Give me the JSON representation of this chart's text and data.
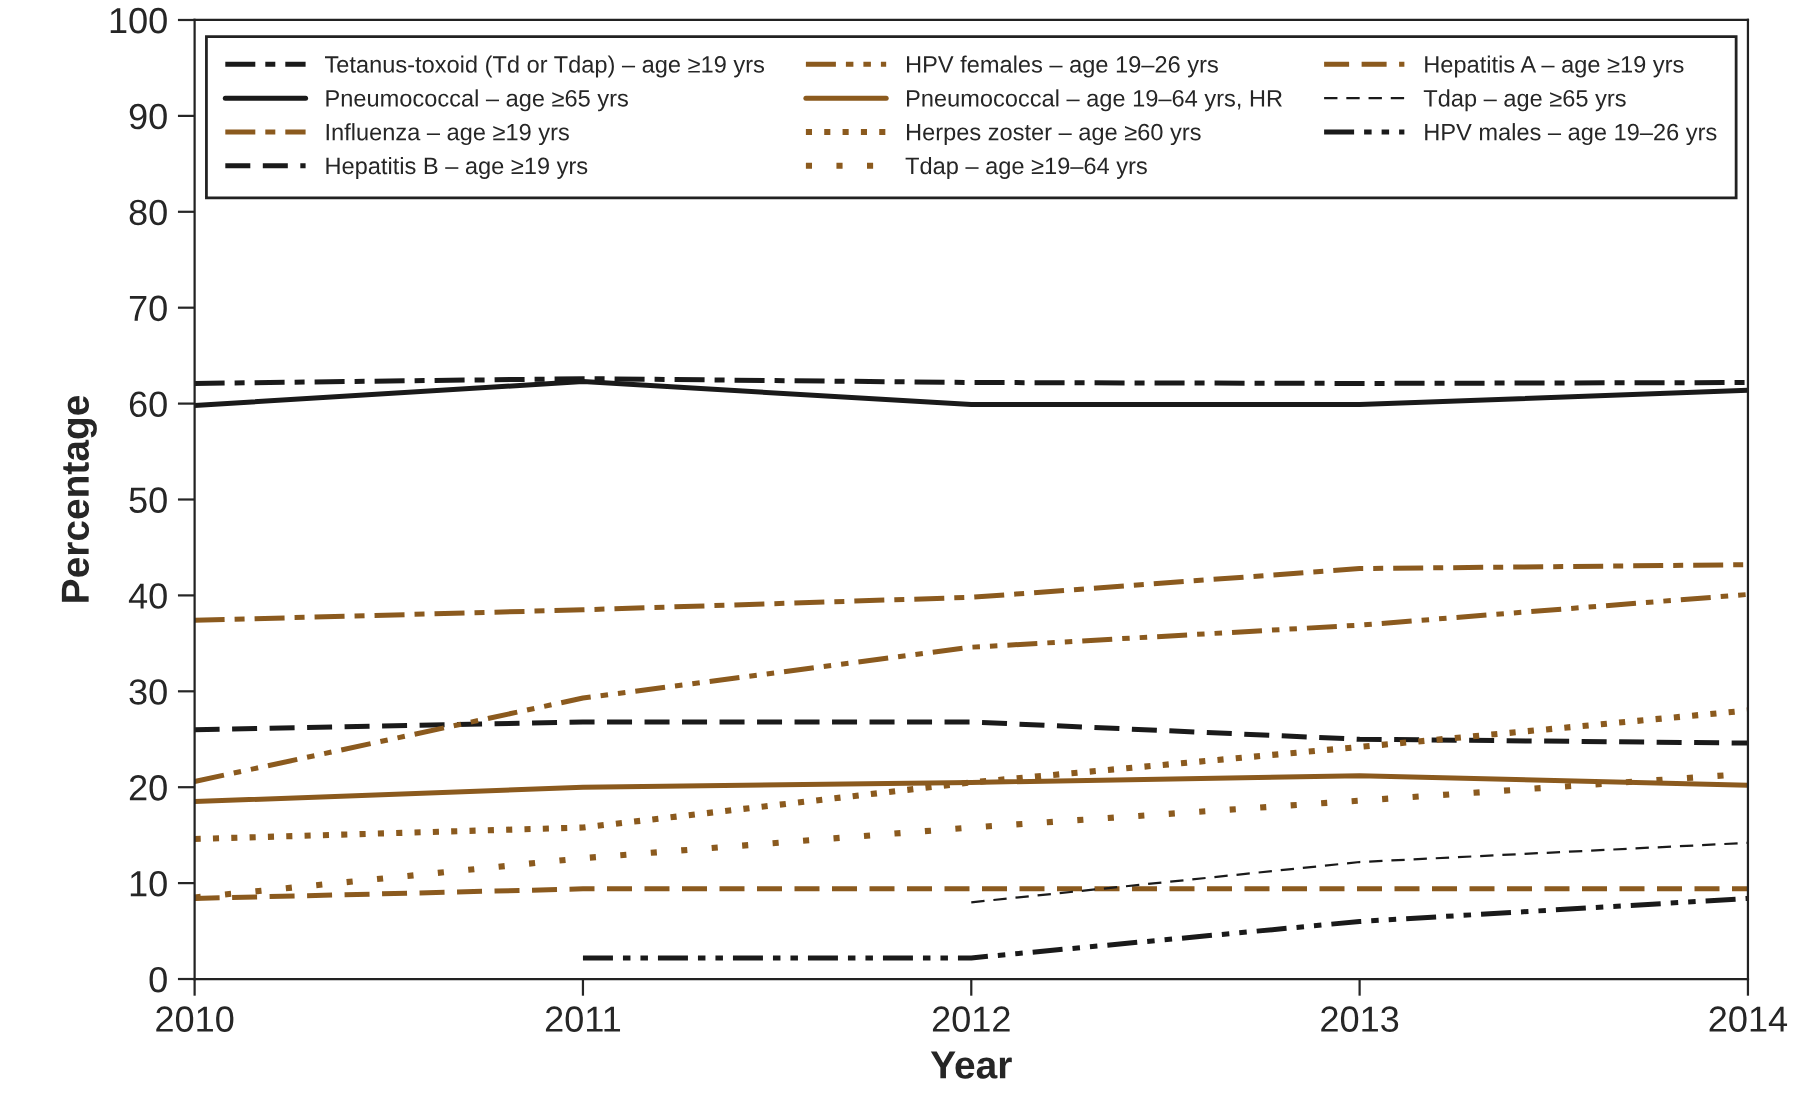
{
  "chart_data": {
    "type": "line",
    "xlabel": "Year",
    "ylabel": "Percentage",
    "x": [
      2010,
      2011,
      2012,
      2013,
      2014
    ],
    "xlim": [
      2010,
      2014
    ],
    "xticks": [
      2010,
      2011,
      2012,
      2013,
      2014
    ],
    "ylim": [
      0,
      100
    ],
    "yticks": [
      0,
      10,
      20,
      30,
      40,
      50,
      60,
      70,
      80,
      90,
      100
    ],
    "grid": false,
    "legend": "top",
    "marker": "none",
    "series": [
      {
        "name": "Tetanus-toxoid (Td or Tdap) – age ≥19 yrs",
        "color": "#1a1a1a",
        "line_style": "dashdot",
        "values": [
          62.1,
          62.6,
          62.2,
          62.1,
          62.2
        ]
      },
      {
        "name": "Pneumococcal – age ≥65 yrs",
        "color": "#1a1a1a",
        "line_style": "solid",
        "values": [
          59.8,
          62.3,
          59.9,
          59.9,
          61.4
        ]
      },
      {
        "name": "Influenza – age ≥19 yrs",
        "color": "#8b5a1e",
        "line_style": "dashdot",
        "values": [
          37.4,
          38.5,
          39.8,
          42.8,
          43.2
        ]
      },
      {
        "name": "Hepatitis B – age ≥19 yrs",
        "color": "#1a1a1a",
        "line_style": "dashed",
        "values": [
          26.0,
          26.8,
          26.8,
          25.0,
          24.6
        ]
      },
      {
        "name": "HPV females – age 19–26 yrs",
        "color": "#8b5a1e",
        "line_style": "dashdotdot",
        "values": [
          20.6,
          29.3,
          34.6,
          36.9,
          40.1
        ]
      },
      {
        "name": "Pneumococcal – age 19–64 yrs, HR",
        "color": "#8b5a1e",
        "line_style": "solid",
        "values": [
          18.5,
          20.0,
          20.5,
          21.2,
          20.2
        ]
      },
      {
        "name": "Herpes zoster – age ≥60 yrs",
        "color": "#8b5a1e",
        "line_style": "dotted",
        "values": [
          14.6,
          15.8,
          20.5,
          24.2,
          28.0
        ]
      },
      {
        "name": "Tdap – age ≥19–64 yrs",
        "color": "#8b5a1e",
        "line_style": "sparsedotted",
        "values": [
          8.5,
          12.6,
          15.8,
          18.6,
          21.4
        ]
      },
      {
        "name": "Hepatitis A – age ≥19 yrs",
        "color": "#8b5a1e",
        "line_style": "dashed",
        "values": [
          8.4,
          9.4,
          9.4,
          9.4,
          9.4
        ]
      },
      {
        "name": "Tdap – age ≥65 yrs",
        "color": "#1a1a1a",
        "line_style": "thindashed",
        "values": [
          null,
          null,
          8.0,
          12.2,
          14.2
        ]
      },
      {
        "name": "HPV males – age 19–26 yrs",
        "color": "#1a1a1a",
        "line_style": "dashdotdot",
        "values": [
          null,
          2.2,
          2.2,
          6.0,
          8.4
        ]
      }
    ]
  }
}
